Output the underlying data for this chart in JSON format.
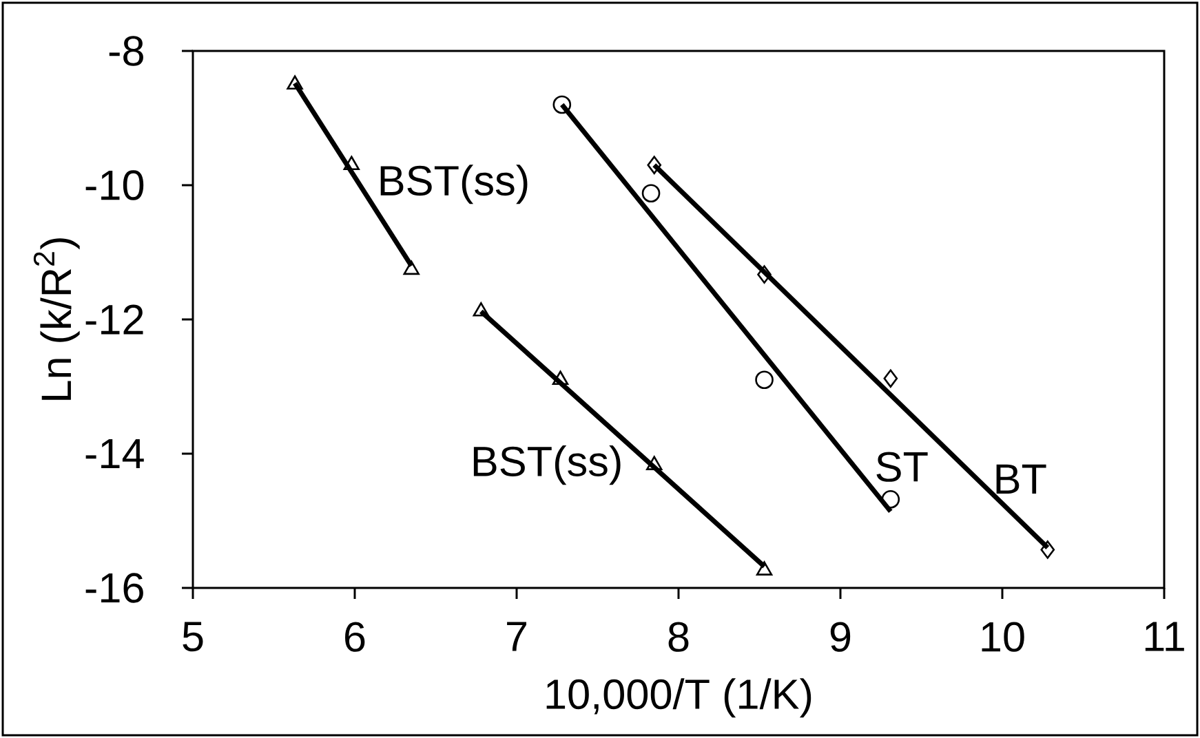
{
  "chart_data": {
    "type": "scatter",
    "xlabel": "10,000/T (1/K)",
    "ylabel": "Ln (k/R$^{2}$)",
    "xlim": [
      5,
      11
    ],
    "ylim": [
      -16,
      -8
    ],
    "xticks": [
      5,
      6,
      7,
      8,
      9,
      10,
      11
    ],
    "yticks": [
      -16,
      -14,
      -12,
      -10,
      -8
    ],
    "grid": false,
    "legend": false,
    "series": [
      {
        "name": "BST(ss)",
        "marker": "triangle",
        "color": "#000000",
        "x": [
          5.63,
          5.98,
          6.35
        ],
        "values": [
          -8.5,
          -9.7,
          -11.26
        ]
      },
      {
        "name": "BST(ss)",
        "marker": "triangle",
        "color": "#000000",
        "x": [
          6.78,
          7.27,
          7.85,
          8.53
        ],
        "values": [
          -11.88,
          -12.9,
          -14.17,
          -15.74
        ]
      },
      {
        "name": "ST",
        "marker": "circle",
        "color": "#000000",
        "x": [
          7.28,
          7.83,
          8.53,
          9.31
        ],
        "values": [
          -8.8,
          -10.12,
          -12.9,
          -14.68
        ]
      },
      {
        "name": "BT",
        "marker": "diamond",
        "color": "#000000",
        "x": [
          7.85,
          8.53,
          9.31,
          10.28
        ],
        "values": [
          -9.7,
          -11.33,
          -12.88,
          -15.43
        ]
      },
      {
        "type": "line",
        "marker": "none",
        "line_style": "solid",
        "color": "#000000",
        "x": [
          5.63,
          6.35
        ],
        "values": [
          -8.48,
          -11.2
        ]
      },
      {
        "type": "line",
        "marker": "none",
        "line_style": "solid",
        "color": "#000000",
        "x": [
          6.78,
          8.53
        ],
        "values": [
          -11.88,
          -15.68
        ]
      },
      {
        "type": "line",
        "marker": "none",
        "line_style": "solid",
        "color": "#000000",
        "x": [
          7.28,
          9.31
        ],
        "values": [
          -8.8,
          -14.86
        ]
      },
      {
        "type": "line",
        "marker": "none",
        "line_style": "solid",
        "color": "#000000",
        "x": [
          7.85,
          10.28
        ],
        "values": [
          -9.7,
          -15.4
        ]
      }
    ]
  }
}
